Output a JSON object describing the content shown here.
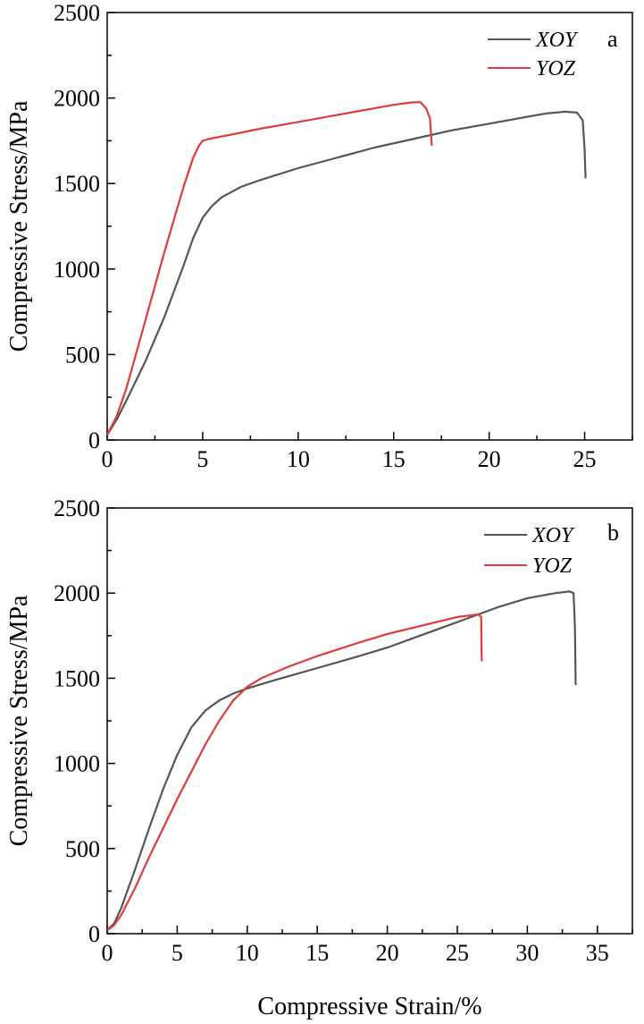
{
  "chart_data": [
    {
      "type": "line",
      "panel_label": "a",
      "title": "",
      "xlabel": "",
      "ylabel": "Compressive Stress/MPa",
      "xlim": [
        0,
        27.5
      ],
      "ylim": [
        0,
        2500
      ],
      "xticks": [
        0,
        5,
        10,
        15,
        20,
        25
      ],
      "yticks": [
        0,
        500,
        1000,
        1500,
        2000,
        2500
      ],
      "x_minor_step": 2.5,
      "y_minor_step": 250,
      "grid": false,
      "legend": "top-right",
      "series": [
        {
          "name": "XOY",
          "color": "#555555",
          "points": [
            [
              0,
              30
            ],
            [
              0.5,
              120
            ],
            [
              1,
              230
            ],
            [
              2,
              460
            ],
            [
              3,
              720
            ],
            [
              4,
              1020
            ],
            [
              4.5,
              1180
            ],
            [
              5,
              1300
            ],
            [
              5.5,
              1370
            ],
            [
              6,
              1420
            ],
            [
              7,
              1480
            ],
            [
              8,
              1520
            ],
            [
              10,
              1590
            ],
            [
              12,
              1650
            ],
            [
              14,
              1710
            ],
            [
              16,
              1760
            ],
            [
              18,
              1810
            ],
            [
              20,
              1850
            ],
            [
              22,
              1890
            ],
            [
              23,
              1910
            ],
            [
              24,
              1920
            ],
            [
              24.6,
              1915
            ],
            [
              24.9,
              1870
            ],
            [
              25.0,
              1700
            ],
            [
              25.05,
              1530
            ]
          ]
        },
        {
          "name": "YOZ",
          "color": "#e03a3a",
          "points": [
            [
              0,
              30
            ],
            [
              0.5,
              140
            ],
            [
              1,
              300
            ],
            [
              2,
              700
            ],
            [
              3,
              1100
            ],
            [
              4,
              1480
            ],
            [
              4.5,
              1650
            ],
            [
              4.8,
              1720
            ],
            [
              5,
              1750
            ],
            [
              5.3,
              1760
            ],
            [
              6,
              1775
            ],
            [
              8,
              1820
            ],
            [
              10,
              1860
            ],
            [
              12,
              1900
            ],
            [
              14,
              1940
            ],
            [
              15,
              1960
            ],
            [
              16,
              1975
            ],
            [
              16.4,
              1975
            ],
            [
              16.7,
              1940
            ],
            [
              16.9,
              1880
            ],
            [
              16.95,
              1800
            ],
            [
              17.0,
              1720
            ]
          ]
        }
      ]
    },
    {
      "type": "line",
      "panel_label": "b",
      "title": "",
      "xlabel": "Compressive Strain/%",
      "ylabel": "Compressive Stress/MPa",
      "xlim": [
        0,
        37.5
      ],
      "ylim": [
        0,
        2500
      ],
      "xticks": [
        0,
        5,
        10,
        15,
        20,
        25,
        30,
        35
      ],
      "yticks": [
        0,
        500,
        1000,
        1500,
        2000,
        2500
      ],
      "x_minor_step": 2.5,
      "y_minor_step": 250,
      "grid": false,
      "legend": "top-right",
      "series": [
        {
          "name": "XOY",
          "color": "#555555",
          "points": [
            [
              0,
              20
            ],
            [
              0.5,
              60
            ],
            [
              1,
              150
            ],
            [
              2,
              380
            ],
            [
              3,
              620
            ],
            [
              4,
              850
            ],
            [
              5,
              1050
            ],
            [
              6,
              1210
            ],
            [
              7,
              1310
            ],
            [
              8,
              1370
            ],
            [
              9,
              1410
            ],
            [
              10,
              1440
            ],
            [
              12,
              1490
            ],
            [
              15,
              1560
            ],
            [
              18,
              1630
            ],
            [
              20,
              1680
            ],
            [
              22,
              1740
            ],
            [
              25,
              1830
            ],
            [
              28,
              1920
            ],
            [
              30,
              1970
            ],
            [
              32,
              2000
            ],
            [
              33,
              2010
            ],
            [
              33.3,
              2000
            ],
            [
              33.4,
              1800
            ],
            [
              33.45,
              1460
            ]
          ]
        },
        {
          "name": "YOZ",
          "color": "#e03a3a",
          "points": [
            [
              0,
              20
            ],
            [
              0.5,
              50
            ],
            [
              1,
              110
            ],
            [
              2,
              270
            ],
            [
              3,
              450
            ],
            [
              4,
              620
            ],
            [
              5,
              790
            ],
            [
              6,
              950
            ],
            [
              7,
              1110
            ],
            [
              8,
              1250
            ],
            [
              9,
              1370
            ],
            [
              10,
              1450
            ],
            [
              11,
              1500
            ],
            [
              13,
              1570
            ],
            [
              15,
              1630
            ],
            [
              18,
              1710
            ],
            [
              20,
              1760
            ],
            [
              22,
              1800
            ],
            [
              24,
              1840
            ],
            [
              25,
              1860
            ],
            [
              26,
              1870
            ],
            [
              26.5,
              1875
            ],
            [
              26.7,
              1860
            ],
            [
              26.72,
              1700
            ],
            [
              26.75,
              1600
            ]
          ]
        }
      ]
    }
  ]
}
